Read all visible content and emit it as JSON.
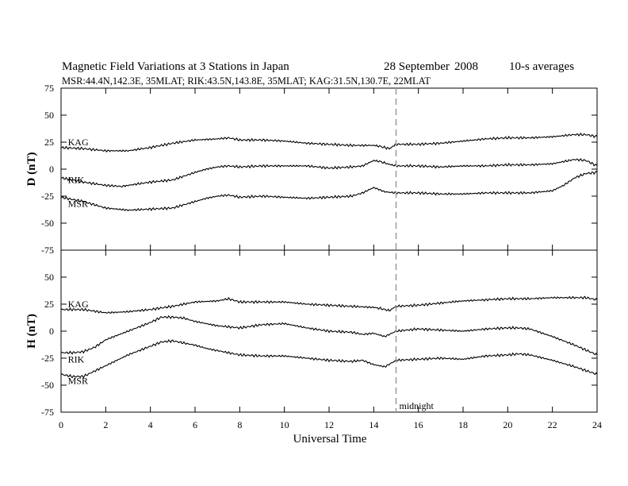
{
  "header": {
    "title": "Magnetic Field Variations at 3 Stations in Japan",
    "date_day_month": "28 September",
    "date_year": "2008",
    "averaging": "10-s averages",
    "stations_line": "MSR:44.4N,142.3E, 35MLAT;  RIK:43.5N,143.8E, 35MLAT;  KAG:31.5N,130.7E, 22MLAT"
  },
  "colors": {
    "trace": "#000000",
    "midnight_line": "#999999",
    "frame": "#000000"
  },
  "chart_data": [
    {
      "type": "line",
      "panel": "D",
      "ylabel": "D (nT)",
      "xlabel": "",
      "xlim": [
        0,
        24
      ],
      "ylim": [
        -75,
        75
      ],
      "xticks": [
        0,
        2,
        4,
        6,
        8,
        10,
        12,
        14,
        16,
        18,
        20,
        22,
        24
      ],
      "yticks": [
        -75,
        -50,
        -25,
        0,
        25,
        50,
        75
      ],
      "grid": false,
      "series": [
        {
          "name": "KAG",
          "label_x": 0.2,
          "label_y": 25,
          "x": [
            0,
            1,
            2,
            3,
            4,
            5,
            6,
            7,
            7.5,
            8,
            9,
            10,
            11,
            12,
            13,
            14,
            14.3,
            14.7,
            15,
            16,
            17,
            18,
            19,
            20,
            21,
            22,
            23,
            23.5,
            24
          ],
          "y": [
            20,
            19,
            17,
            17,
            20,
            24,
            27,
            28,
            29,
            27,
            27,
            26,
            24,
            23,
            22,
            22,
            21,
            19,
            23,
            23,
            24,
            26,
            28,
            29,
            29,
            30,
            32,
            32,
            30
          ]
        },
        {
          "name": "RIK",
          "label_x": 0.2,
          "label_y": -10,
          "x": [
            0,
            0.5,
            1,
            2,
            2.7,
            3,
            4,
            5,
            6,
            6.5,
            7,
            7.5,
            8,
            9,
            10,
            11,
            12,
            13,
            13.5,
            14,
            14.3,
            14.6,
            15,
            16,
            17,
            18,
            19,
            20,
            21,
            22,
            22.5,
            23,
            23.5,
            24
          ],
          "y": [
            -8,
            -10,
            -12,
            -15,
            -16,
            -15,
            -12,
            -10,
            -3,
            0,
            2,
            3,
            2,
            3,
            3,
            3,
            1,
            2,
            3,
            8,
            7,
            5,
            3,
            3,
            2,
            3,
            3,
            4,
            4,
            5,
            7,
            9,
            8,
            3
          ]
        },
        {
          "name": "MSR",
          "label_x": 0.2,
          "label_y": -32,
          "x": [
            0,
            0.5,
            1,
            2,
            3,
            4,
            5,
            6,
            6.5,
            7,
            7.5,
            8,
            9,
            10,
            11,
            12,
            13,
            13.5,
            14,
            14.5,
            15,
            16,
            17,
            18,
            19,
            20,
            21,
            22,
            22.5,
            23,
            23.5,
            24
          ],
          "y": [
            -26,
            -28,
            -30,
            -36,
            -38,
            -37,
            -36,
            -30,
            -27,
            -25,
            -24,
            -26,
            -25,
            -26,
            -27,
            -26,
            -25,
            -22,
            -17,
            -21,
            -22,
            -22,
            -23,
            -23,
            -22,
            -22,
            -22,
            -20,
            -15,
            -8,
            -4,
            -3
          ]
        }
      ]
    },
    {
      "type": "line",
      "panel": "H",
      "ylabel": "H (nT)",
      "xlabel": "Universal Time",
      "xlim": [
        0,
        24
      ],
      "ylim": [
        -75,
        75
      ],
      "xticks": [
        0,
        2,
        4,
        6,
        8,
        10,
        12,
        14,
        16,
        18,
        20,
        22,
        24
      ],
      "yticks": [
        -75,
        -50,
        -25,
        0,
        25,
        50,
        75
      ],
      "grid": false,
      "series": [
        {
          "name": "KAG",
          "label_x": 0.2,
          "label_y": 25,
          "x": [
            0,
            1,
            2,
            3,
            4,
            5,
            6,
            7,
            7.5,
            8,
            9,
            10,
            11,
            12,
            13,
            14,
            14.3,
            14.7,
            15,
            16,
            17,
            18,
            19,
            20,
            21,
            22,
            23,
            23.5,
            24
          ],
          "y": [
            20,
            20,
            17,
            18,
            20,
            23,
            27,
            28,
            30,
            27,
            27,
            27,
            25,
            24,
            23,
            22,
            21,
            19,
            23,
            24,
            26,
            28,
            29,
            30,
            30,
            31,
            31,
            31,
            29
          ]
        },
        {
          "name": "RIK",
          "label_x": 0.2,
          "label_y": -26,
          "x": [
            0,
            0.5,
            1,
            1.5,
            2,
            3,
            4,
            4.5,
            5,
            5.5,
            6,
            6.5,
            7,
            8,
            9,
            10,
            11,
            12,
            13,
            13.5,
            14,
            14.5,
            15,
            16,
            17,
            18,
            19,
            20,
            20.5,
            21,
            22,
            23,
            24
          ],
          "y": [
            -20,
            -20,
            -19,
            -15,
            -8,
            0,
            8,
            13,
            13,
            12,
            9,
            7,
            5,
            3,
            6,
            7,
            3,
            0,
            -1,
            -3,
            -2,
            -5,
            0,
            2,
            1,
            0,
            2,
            3,
            3,
            2,
            -5,
            -13,
            -22
          ]
        },
        {
          "name": "MSR",
          "label_x": 0.2,
          "label_y": -46,
          "x": [
            0,
            0.5,
            1,
            1.5,
            2,
            3,
            4,
            4.5,
            5,
            5.5,
            6,
            6.5,
            7,
            8,
            9,
            10,
            11,
            12,
            13,
            13.5,
            14,
            14.5,
            15,
            16,
            17,
            18,
            19,
            20,
            20.5,
            21,
            22,
            23,
            24
          ],
          "y": [
            -40,
            -42,
            -42,
            -37,
            -32,
            -22,
            -14,
            -10,
            -9,
            -11,
            -13,
            -16,
            -18,
            -22,
            -23,
            -23,
            -25,
            -27,
            -28,
            -27,
            -31,
            -33,
            -27,
            -26,
            -25,
            -26,
            -23,
            -22,
            -21,
            -22,
            -27,
            -33,
            -40
          ]
        }
      ]
    }
  ],
  "annotation": {
    "midnight_label": "midnight",
    "midnight_ut": 15
  }
}
